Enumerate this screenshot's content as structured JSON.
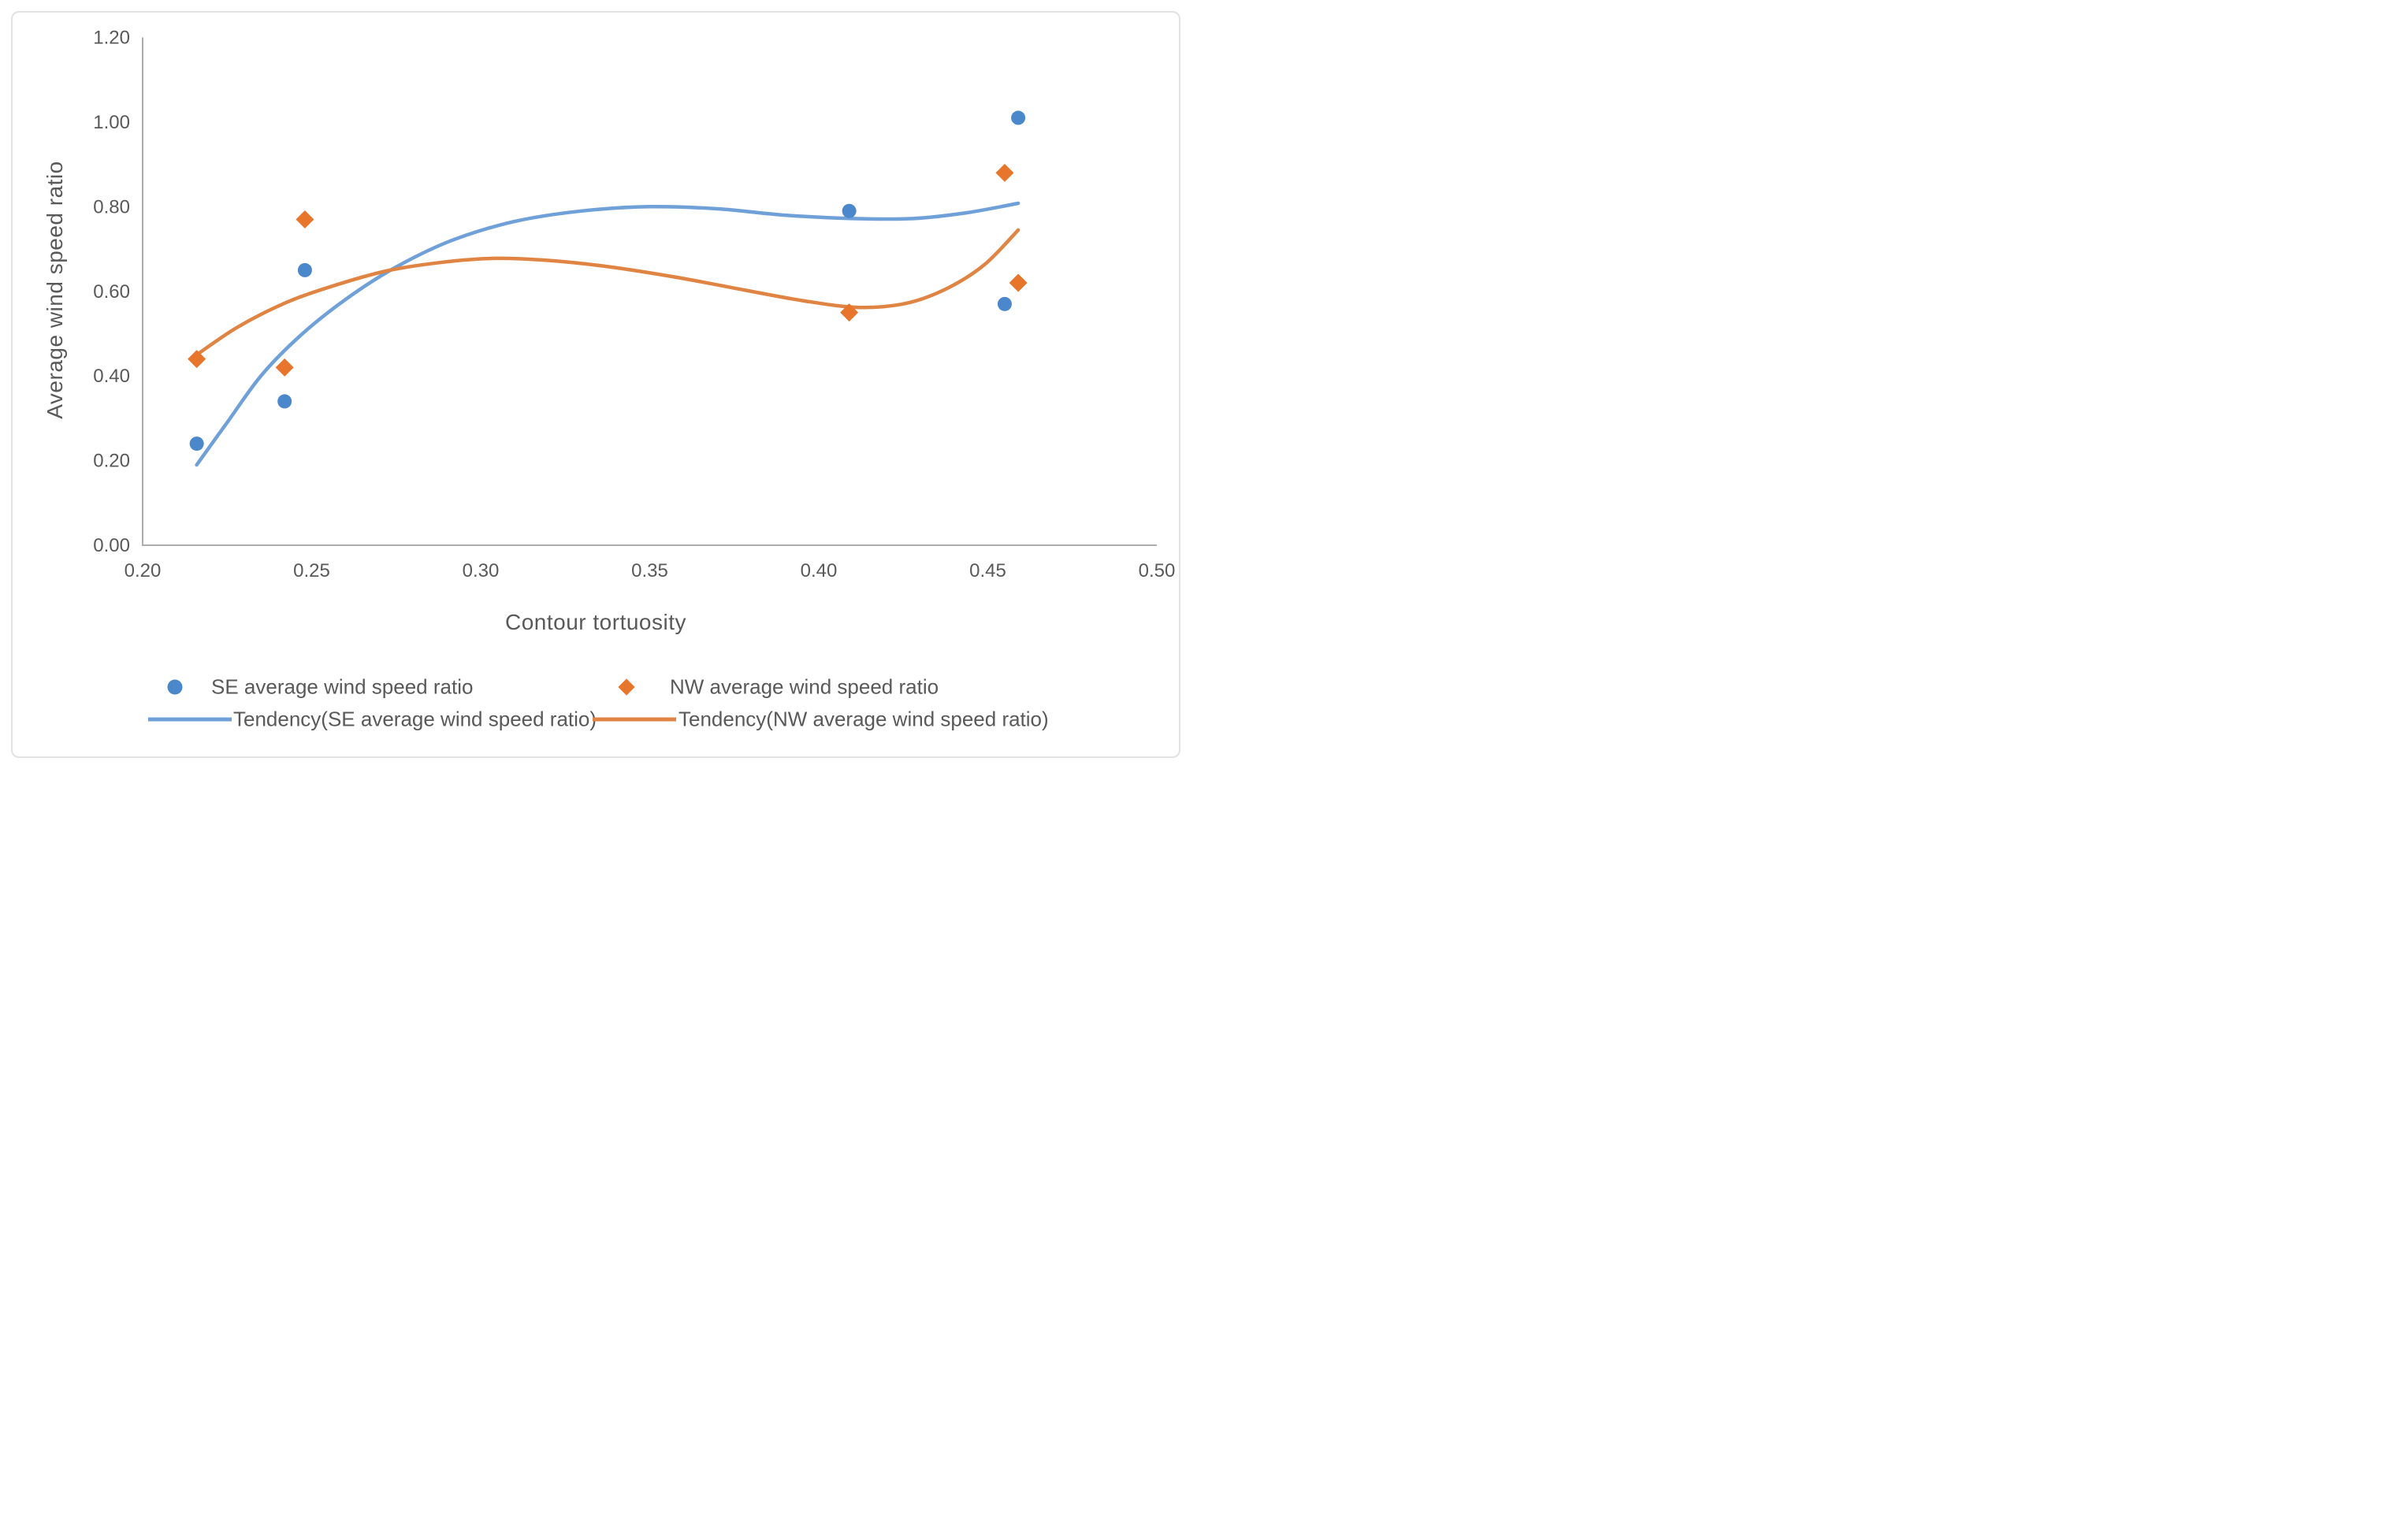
{
  "figure": {
    "background": "#ffffff",
    "border_color": "#e2e2e2"
  },
  "chart_data": {
    "type": "scatter",
    "title": "",
    "xlabel": "Contour tortuosity",
    "ylabel": "Average wind speed ratio",
    "xlim": [
      0.2,
      0.5
    ],
    "ylim": [
      0.0,
      1.2
    ],
    "x_tick_labels": [
      "0.20",
      "0.25",
      "0.30",
      "0.35",
      "0.40",
      "0.45",
      "0.50"
    ],
    "x_tick_values": [
      0.2,
      0.25,
      0.3,
      0.35,
      0.4,
      0.45,
      0.5
    ],
    "y_tick_labels": [
      "0.00",
      "0.20",
      "0.40",
      "0.60",
      "0.80",
      "1.00",
      "1.20"
    ],
    "y_tick_values": [
      0.0,
      0.2,
      0.4,
      0.6,
      0.8,
      1.0,
      1.2
    ],
    "grid": false,
    "axis_color": "#adadad",
    "text_color": "#595959",
    "legend_position": "bottom-two-rows",
    "series": [
      {
        "name": "SE average wind speed ratio",
        "kind": "scatter",
        "marker": "circle",
        "color": "#4a87cb",
        "points": [
          [
            0.216,
            0.24
          ],
          [
            0.242,
            0.34
          ],
          [
            0.248,
            0.65
          ],
          [
            0.409,
            0.79
          ],
          [
            0.455,
            0.57
          ],
          [
            0.459,
            1.01
          ]
        ]
      },
      {
        "name": "NW average wind speed ratio",
        "kind": "scatter",
        "marker": "diamond",
        "color": "#e8752c",
        "points": [
          [
            0.216,
            0.44
          ],
          [
            0.242,
            0.42
          ],
          [
            0.248,
            0.77
          ],
          [
            0.409,
            0.55
          ],
          [
            0.455,
            0.88
          ],
          [
            0.459,
            0.62
          ]
        ]
      },
      {
        "name": "Tendency(SE average wind speed ratio)",
        "kind": "trendline",
        "marker": "line",
        "color": "#6fa0d8",
        "points": [
          [
            0.216,
            0.19
          ],
          [
            0.225,
            0.29
          ],
          [
            0.2355,
            0.405
          ],
          [
            0.248,
            0.505
          ],
          [
            0.262,
            0.592
          ],
          [
            0.276,
            0.662
          ],
          [
            0.292,
            0.722
          ],
          [
            0.31,
            0.765
          ],
          [
            0.33,
            0.79
          ],
          [
            0.35,
            0.8
          ],
          [
            0.37,
            0.795
          ],
          [
            0.39,
            0.78
          ],
          [
            0.41,
            0.772
          ],
          [
            0.428,
            0.772
          ],
          [
            0.444,
            0.786
          ],
          [
            0.459,
            0.808
          ]
        ]
      },
      {
        "name": "Tendency(NW average wind speed ratio)",
        "kind": "trendline",
        "marker": "line",
        "color": "#e08443",
        "points": [
          [
            0.216,
            0.45
          ],
          [
            0.228,
            0.515
          ],
          [
            0.242,
            0.572
          ],
          [
            0.256,
            0.612
          ],
          [
            0.272,
            0.648
          ],
          [
            0.288,
            0.668
          ],
          [
            0.304,
            0.678
          ],
          [
            0.32,
            0.673
          ],
          [
            0.338,
            0.658
          ],
          [
            0.358,
            0.633
          ],
          [
            0.378,
            0.603
          ],
          [
            0.396,
            0.577
          ],
          [
            0.412,
            0.562
          ],
          [
            0.426,
            0.572
          ],
          [
            0.438,
            0.607
          ],
          [
            0.449,
            0.663
          ],
          [
            0.459,
            0.745
          ]
        ]
      }
    ]
  }
}
